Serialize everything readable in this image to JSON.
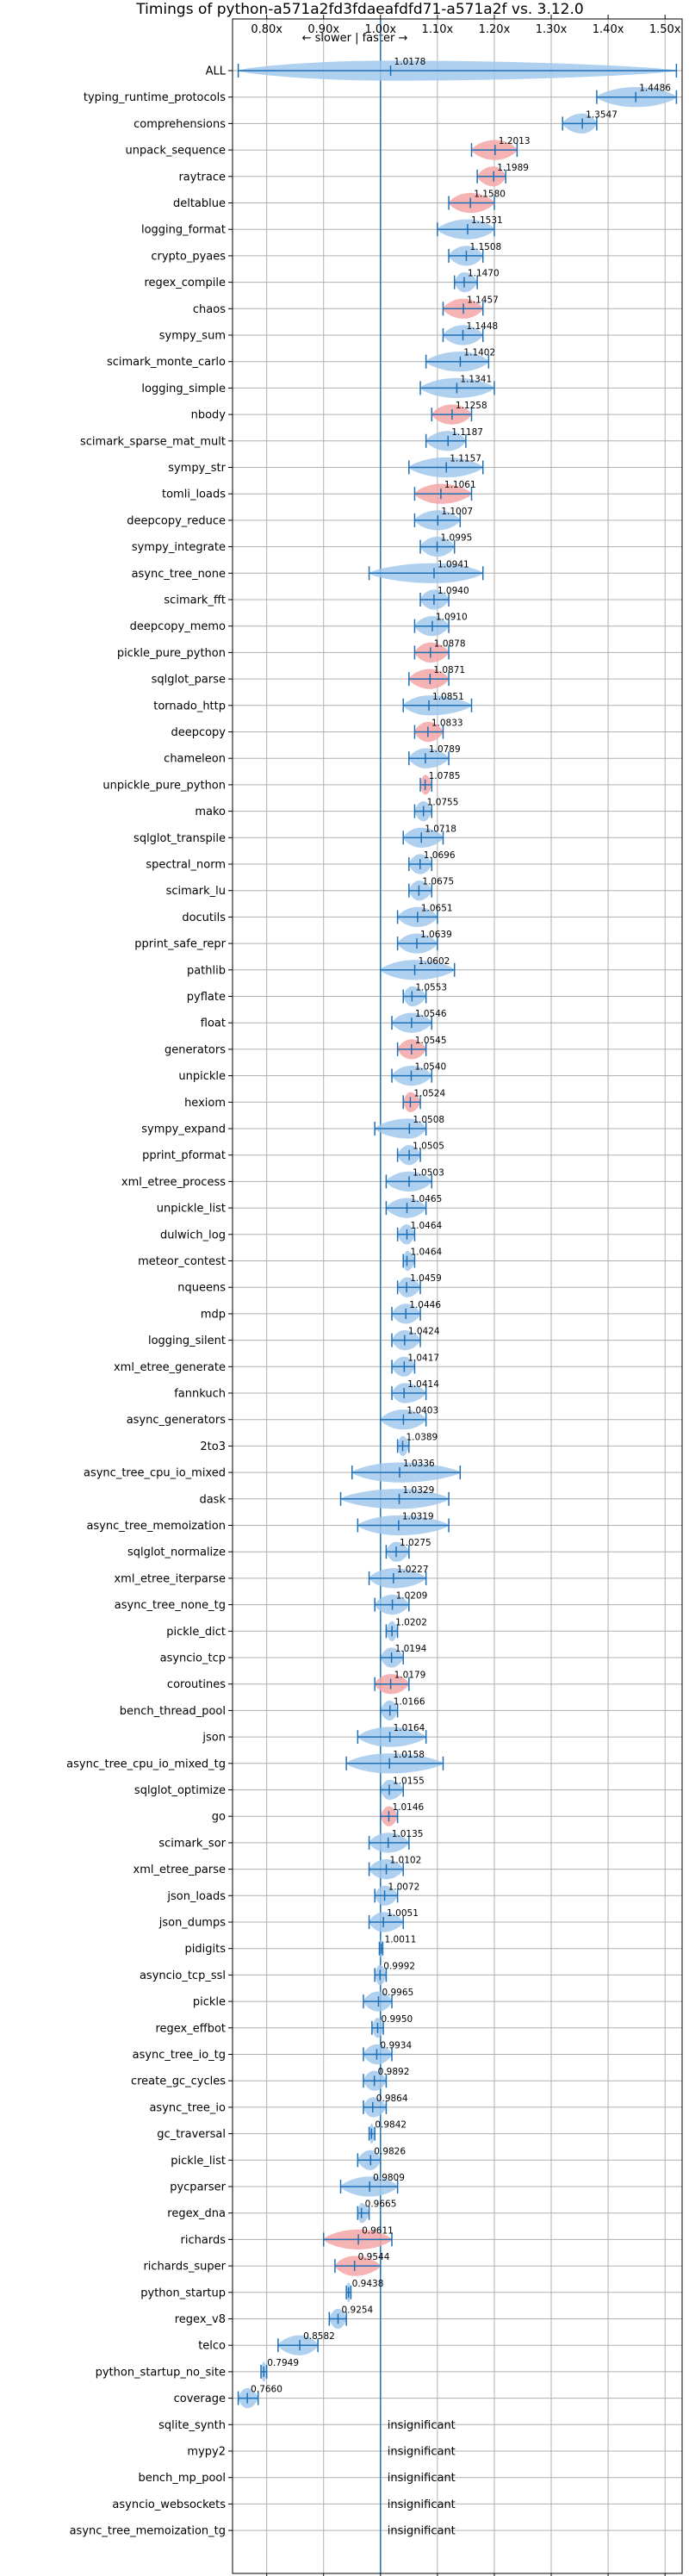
{
  "chart_data": {
    "type": "violin",
    "title": "Timings of python-a571a2fd3fdaeafdfd71-a571a2f vs. 3.12.0",
    "direction_annotation": "← slower | faster →",
    "xlim": [
      0.74,
      1.53
    ],
    "xticks": [
      0.8,
      0.9,
      1.0,
      1.1,
      1.2,
      1.3,
      1.4,
      1.5
    ],
    "xtick_labels": [
      "0.80x",
      "0.90x",
      "1.00x",
      "1.10x",
      "1.20x",
      "1.30x",
      "1.40x",
      "1.50x"
    ],
    "reference_line": 1.0,
    "grid": true,
    "insignificant_label": "insignificant",
    "colors": {
      "faster": "#a1c8ec",
      "slower": "#f4a6a6",
      "line": "#1f6fb5"
    },
    "benchmarks": [
      {
        "name": "ALL",
        "value": 1.0178,
        "lo": 0.75,
        "hi": 1.52,
        "color": "blue"
      },
      {
        "name": "typing_runtime_protocols",
        "value": 1.4486,
        "lo": 1.38,
        "hi": 1.52,
        "color": "blue"
      },
      {
        "name": "comprehensions",
        "value": 1.3547,
        "lo": 1.32,
        "hi": 1.38,
        "color": "blue"
      },
      {
        "name": "unpack_sequence",
        "value": 1.2013,
        "lo": 1.16,
        "hi": 1.24,
        "color": "red"
      },
      {
        "name": "raytrace",
        "value": 1.1989,
        "lo": 1.17,
        "hi": 1.22,
        "color": "red"
      },
      {
        "name": "deltablue",
        "value": 1.158,
        "lo": 1.12,
        "hi": 1.2,
        "color": "red"
      },
      {
        "name": "logging_format",
        "value": 1.1531,
        "lo": 1.1,
        "hi": 1.2,
        "color": "blue"
      },
      {
        "name": "crypto_pyaes",
        "value": 1.1508,
        "lo": 1.12,
        "hi": 1.18,
        "color": "blue"
      },
      {
        "name": "regex_compile",
        "value": 1.147,
        "lo": 1.13,
        "hi": 1.17,
        "color": "blue"
      },
      {
        "name": "chaos",
        "value": 1.1457,
        "lo": 1.11,
        "hi": 1.18,
        "color": "red"
      },
      {
        "name": "sympy_sum",
        "value": 1.1448,
        "lo": 1.11,
        "hi": 1.18,
        "color": "blue"
      },
      {
        "name": "scimark_monte_carlo",
        "value": 1.1402,
        "lo": 1.08,
        "hi": 1.19,
        "color": "blue"
      },
      {
        "name": "logging_simple",
        "value": 1.1341,
        "lo": 1.07,
        "hi": 1.2,
        "color": "blue"
      },
      {
        "name": "nbody",
        "value": 1.1258,
        "lo": 1.09,
        "hi": 1.16,
        "color": "red"
      },
      {
        "name": "scimark_sparse_mat_mult",
        "value": 1.1187,
        "lo": 1.08,
        "hi": 1.15,
        "color": "blue"
      },
      {
        "name": "sympy_str",
        "value": 1.1157,
        "lo": 1.05,
        "hi": 1.18,
        "color": "blue"
      },
      {
        "name": "tomli_loads",
        "value": 1.1061,
        "lo": 1.06,
        "hi": 1.16,
        "color": "red"
      },
      {
        "name": "deepcopy_reduce",
        "value": 1.1007,
        "lo": 1.06,
        "hi": 1.14,
        "color": "blue"
      },
      {
        "name": "sympy_integrate",
        "value": 1.0995,
        "lo": 1.07,
        "hi": 1.13,
        "color": "blue"
      },
      {
        "name": "async_tree_none",
        "value": 1.0941,
        "lo": 0.98,
        "hi": 1.18,
        "color": "blue"
      },
      {
        "name": "scimark_fft",
        "value": 1.094,
        "lo": 1.07,
        "hi": 1.12,
        "color": "blue"
      },
      {
        "name": "deepcopy_memo",
        "value": 1.091,
        "lo": 1.06,
        "hi": 1.12,
        "color": "blue"
      },
      {
        "name": "pickle_pure_python",
        "value": 1.0878,
        "lo": 1.06,
        "hi": 1.12,
        "color": "red"
      },
      {
        "name": "sqlglot_parse",
        "value": 1.0871,
        "lo": 1.05,
        "hi": 1.12,
        "color": "red"
      },
      {
        "name": "tornado_http",
        "value": 1.0851,
        "lo": 1.04,
        "hi": 1.16,
        "color": "blue"
      },
      {
        "name": "deepcopy",
        "value": 1.0833,
        "lo": 1.06,
        "hi": 1.11,
        "color": "red"
      },
      {
        "name": "chameleon",
        "value": 1.0789,
        "lo": 1.05,
        "hi": 1.12,
        "color": "blue"
      },
      {
        "name": "unpickle_pure_python",
        "value": 1.0785,
        "lo": 1.07,
        "hi": 1.09,
        "color": "red"
      },
      {
        "name": "mako",
        "value": 1.0755,
        "lo": 1.06,
        "hi": 1.09,
        "color": "blue"
      },
      {
        "name": "sqlglot_transpile",
        "value": 1.0718,
        "lo": 1.04,
        "hi": 1.11,
        "color": "blue"
      },
      {
        "name": "spectral_norm",
        "value": 1.0696,
        "lo": 1.05,
        "hi": 1.09,
        "color": "blue"
      },
      {
        "name": "scimark_lu",
        "value": 1.0675,
        "lo": 1.05,
        "hi": 1.09,
        "color": "blue"
      },
      {
        "name": "docutils",
        "value": 1.0651,
        "lo": 1.03,
        "hi": 1.1,
        "color": "blue"
      },
      {
        "name": "pprint_safe_repr",
        "value": 1.0639,
        "lo": 1.03,
        "hi": 1.1,
        "color": "blue"
      },
      {
        "name": "pathlib",
        "value": 1.0602,
        "lo": 1.0,
        "hi": 1.13,
        "color": "blue"
      },
      {
        "name": "pyflate",
        "value": 1.0553,
        "lo": 1.04,
        "hi": 1.08,
        "color": "blue"
      },
      {
        "name": "float",
        "value": 1.0546,
        "lo": 1.02,
        "hi": 1.09,
        "color": "blue"
      },
      {
        "name": "generators",
        "value": 1.0545,
        "lo": 1.03,
        "hi": 1.08,
        "color": "red"
      },
      {
        "name": "unpickle",
        "value": 1.054,
        "lo": 1.02,
        "hi": 1.09,
        "color": "blue"
      },
      {
        "name": "hexiom",
        "value": 1.0524,
        "lo": 1.04,
        "hi": 1.07,
        "color": "red"
      },
      {
        "name": "sympy_expand",
        "value": 1.0508,
        "lo": 0.99,
        "hi": 1.08,
        "color": "blue"
      },
      {
        "name": "pprint_pformat",
        "value": 1.0505,
        "lo": 1.03,
        "hi": 1.07,
        "color": "blue"
      },
      {
        "name": "xml_etree_process",
        "value": 1.0503,
        "lo": 1.01,
        "hi": 1.09,
        "color": "blue"
      },
      {
        "name": "unpickle_list",
        "value": 1.0465,
        "lo": 1.01,
        "hi": 1.08,
        "color": "blue"
      },
      {
        "name": "dulwich_log",
        "value": 1.0464,
        "lo": 1.03,
        "hi": 1.06,
        "color": "blue"
      },
      {
        "name": "meteor_contest",
        "value": 1.0464,
        "lo": 1.04,
        "hi": 1.06,
        "color": "blue"
      },
      {
        "name": "nqueens",
        "value": 1.0459,
        "lo": 1.03,
        "hi": 1.07,
        "color": "blue"
      },
      {
        "name": "mdp",
        "value": 1.0446,
        "lo": 1.02,
        "hi": 1.07,
        "color": "blue"
      },
      {
        "name": "logging_silent",
        "value": 1.0424,
        "lo": 1.02,
        "hi": 1.07,
        "color": "blue"
      },
      {
        "name": "xml_etree_generate",
        "value": 1.0417,
        "lo": 1.02,
        "hi": 1.06,
        "color": "blue"
      },
      {
        "name": "fannkuch",
        "value": 1.0414,
        "lo": 1.02,
        "hi": 1.08,
        "color": "blue"
      },
      {
        "name": "async_generators",
        "value": 1.0403,
        "lo": 1.0,
        "hi": 1.08,
        "color": "blue"
      },
      {
        "name": "2to3",
        "value": 1.0389,
        "lo": 1.03,
        "hi": 1.05,
        "color": "blue"
      },
      {
        "name": "async_tree_cpu_io_mixed",
        "value": 1.0336,
        "lo": 0.95,
        "hi": 1.14,
        "color": "blue"
      },
      {
        "name": "dask",
        "value": 1.0329,
        "lo": 0.93,
        "hi": 1.12,
        "color": "blue"
      },
      {
        "name": "async_tree_memoization",
        "value": 1.0319,
        "lo": 0.96,
        "hi": 1.12,
        "color": "blue"
      },
      {
        "name": "sqlglot_normalize",
        "value": 1.0275,
        "lo": 1.01,
        "hi": 1.05,
        "color": "blue"
      },
      {
        "name": "xml_etree_iterparse",
        "value": 1.0227,
        "lo": 0.98,
        "hi": 1.08,
        "color": "blue"
      },
      {
        "name": "async_tree_none_tg",
        "value": 1.0209,
        "lo": 0.99,
        "hi": 1.05,
        "color": "blue"
      },
      {
        "name": "pickle_dict",
        "value": 1.0202,
        "lo": 1.01,
        "hi": 1.03,
        "color": "blue"
      },
      {
        "name": "asyncio_tcp",
        "value": 1.0194,
        "lo": 1.0,
        "hi": 1.04,
        "color": "blue"
      },
      {
        "name": "coroutines",
        "value": 1.0179,
        "lo": 0.99,
        "hi": 1.05,
        "color": "red"
      },
      {
        "name": "bench_thread_pool",
        "value": 1.0166,
        "lo": 1.0,
        "hi": 1.03,
        "color": "blue"
      },
      {
        "name": "json",
        "value": 1.0164,
        "lo": 0.96,
        "hi": 1.08,
        "color": "blue"
      },
      {
        "name": "async_tree_cpu_io_mixed_tg",
        "value": 1.0158,
        "lo": 0.94,
        "hi": 1.11,
        "color": "blue"
      },
      {
        "name": "sqlglot_optimize",
        "value": 1.0155,
        "lo": 1.0,
        "hi": 1.04,
        "color": "blue"
      },
      {
        "name": "go",
        "value": 1.0146,
        "lo": 1.0,
        "hi": 1.03,
        "color": "red"
      },
      {
        "name": "scimark_sor",
        "value": 1.0135,
        "lo": 0.98,
        "hi": 1.05,
        "color": "blue"
      },
      {
        "name": "xml_etree_parse",
        "value": 1.0102,
        "lo": 0.98,
        "hi": 1.04,
        "color": "blue"
      },
      {
        "name": "json_loads",
        "value": 1.0072,
        "lo": 0.99,
        "hi": 1.03,
        "color": "blue"
      },
      {
        "name": "json_dumps",
        "value": 1.0051,
        "lo": 0.98,
        "hi": 1.04,
        "color": "blue"
      },
      {
        "name": "pidigits",
        "value": 1.0011,
        "lo": 0.998,
        "hi": 1.004,
        "color": "blue"
      },
      {
        "name": "asyncio_tcp_ssl",
        "value": 0.9992,
        "lo": 0.99,
        "hi": 1.01,
        "color": "blue"
      },
      {
        "name": "pickle",
        "value": 0.9965,
        "lo": 0.97,
        "hi": 1.02,
        "color": "blue"
      },
      {
        "name": "regex_effbot",
        "value": 0.995,
        "lo": 0.985,
        "hi": 1.005,
        "color": "blue"
      },
      {
        "name": "async_tree_io_tg",
        "value": 0.9934,
        "lo": 0.97,
        "hi": 1.02,
        "color": "blue"
      },
      {
        "name": "create_gc_cycles",
        "value": 0.9892,
        "lo": 0.97,
        "hi": 1.01,
        "color": "blue"
      },
      {
        "name": "async_tree_io",
        "value": 0.9864,
        "lo": 0.97,
        "hi": 1.01,
        "color": "blue"
      },
      {
        "name": "gc_traversal",
        "value": 0.9842,
        "lo": 0.98,
        "hi": 0.99,
        "color": "blue"
      },
      {
        "name": "pickle_list",
        "value": 0.9826,
        "lo": 0.96,
        "hi": 1.0,
        "color": "blue"
      },
      {
        "name": "pycparser",
        "value": 0.9809,
        "lo": 0.93,
        "hi": 1.03,
        "color": "blue"
      },
      {
        "name": "regex_dna",
        "value": 0.9665,
        "lo": 0.96,
        "hi": 0.98,
        "color": "blue"
      },
      {
        "name": "richards",
        "value": 0.9611,
        "lo": 0.9,
        "hi": 1.02,
        "color": "red"
      },
      {
        "name": "richards_super",
        "value": 0.9544,
        "lo": 0.92,
        "hi": 1.0,
        "color": "red"
      },
      {
        "name": "python_startup",
        "value": 0.9438,
        "lo": 0.94,
        "hi": 0.948,
        "color": "blue"
      },
      {
        "name": "regex_v8",
        "value": 0.9254,
        "lo": 0.91,
        "hi": 0.94,
        "color": "blue"
      },
      {
        "name": "telco",
        "value": 0.8582,
        "lo": 0.82,
        "hi": 0.89,
        "color": "blue"
      },
      {
        "name": "python_startup_no_site",
        "value": 0.7949,
        "lo": 0.79,
        "hi": 0.8,
        "color": "blue"
      },
      {
        "name": "coverage",
        "value": 0.766,
        "lo": 0.75,
        "hi": 0.785,
        "color": "blue"
      },
      {
        "name": "sqlite_synth",
        "value": null
      },
      {
        "name": "mypy2",
        "value": null
      },
      {
        "name": "bench_mp_pool",
        "value": null
      },
      {
        "name": "asyncio_websockets",
        "value": null
      },
      {
        "name": "async_tree_memoization_tg",
        "value": null
      }
    ]
  }
}
